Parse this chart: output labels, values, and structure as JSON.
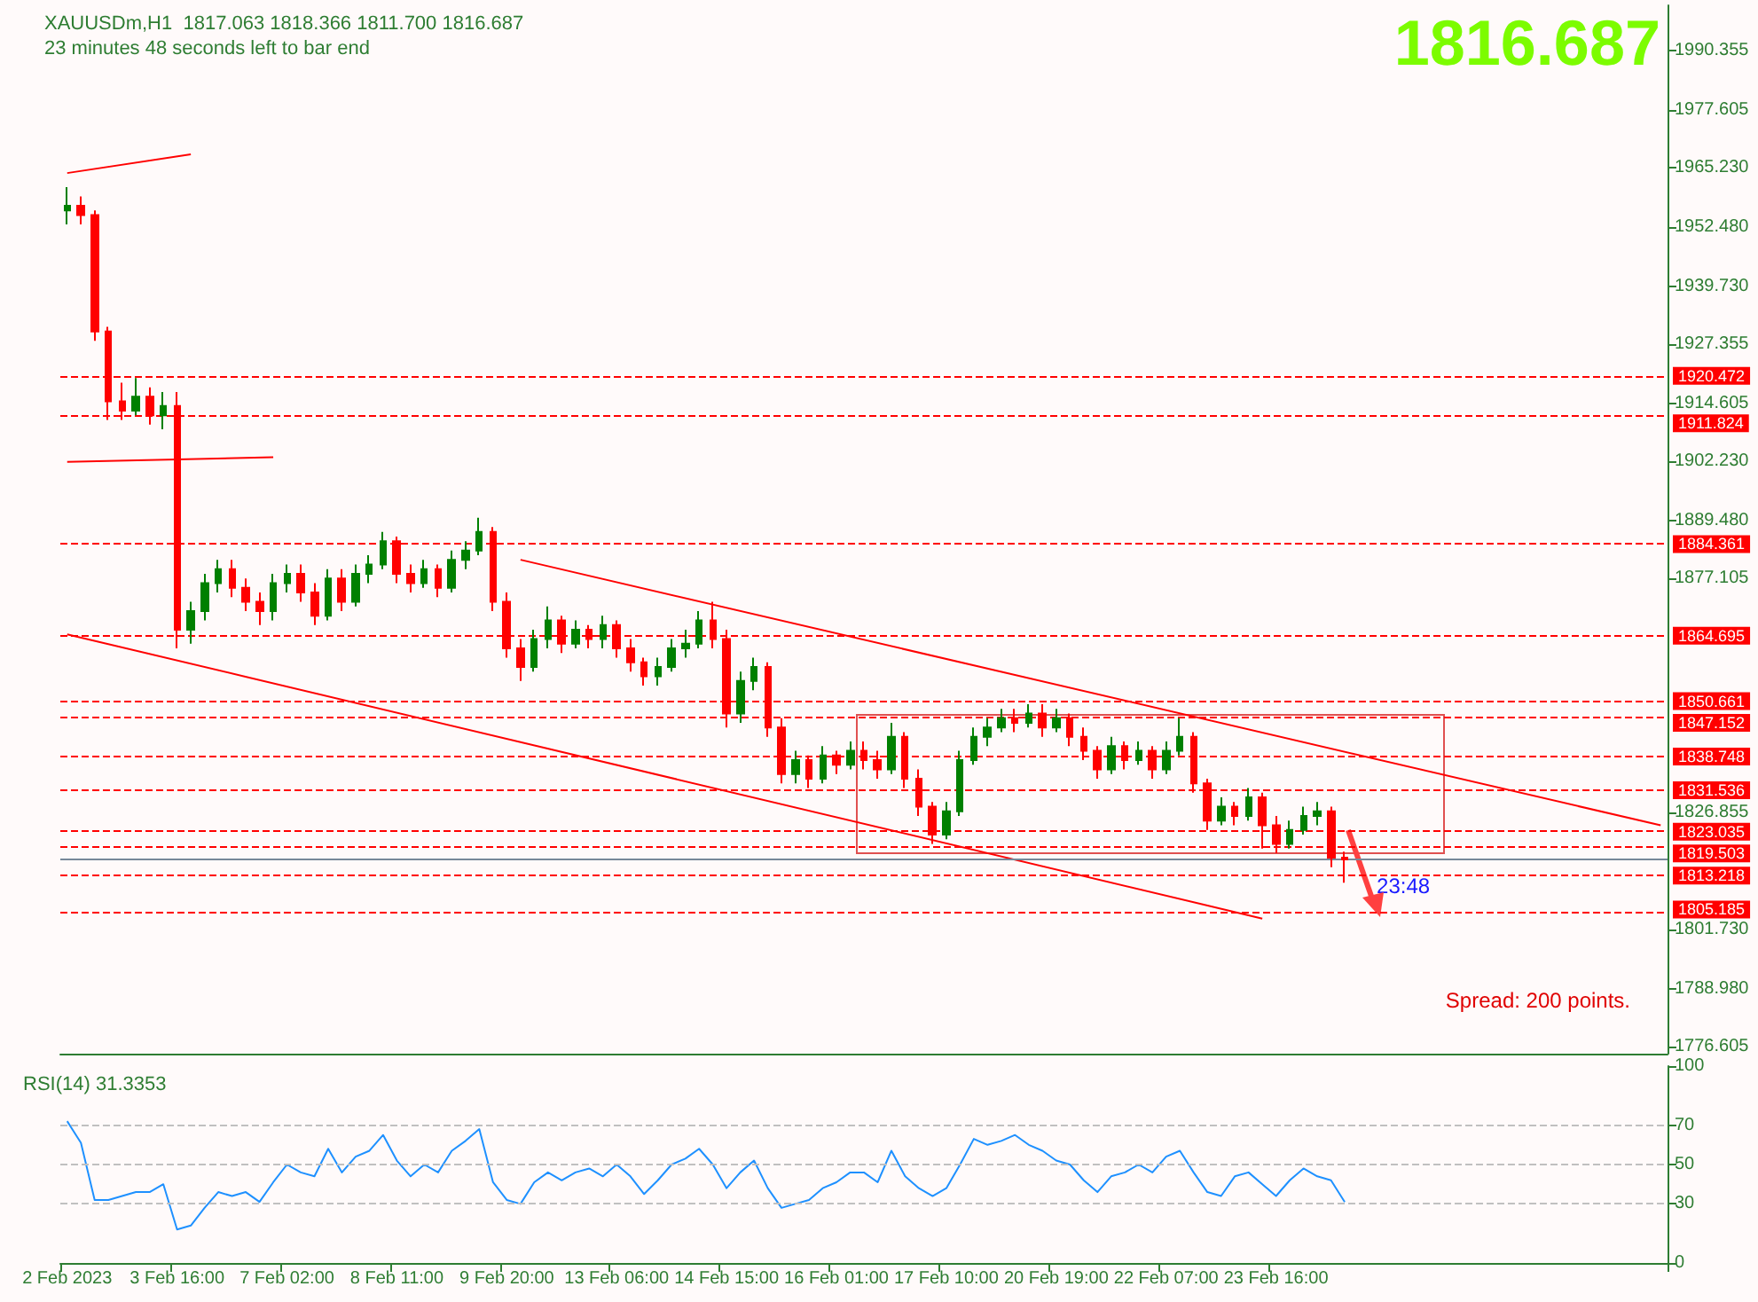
{
  "chart_data": [
    {
      "type": "candlestick",
      "title": "XAUUSDm,H1  1817.063 1818.366 1811.700 1816.687",
      "subtitle": "23 minutes 48 seconds left to bar end",
      "categories": [
        null,
        null,
        null,
        null,
        null,
        null,
        null,
        null,
        null,
        null,
        null,
        null,
        null,
        null,
        null,
        null,
        null,
        null,
        null,
        null,
        null,
        null,
        null,
        null,
        null,
        null,
        null,
        null,
        null,
        null,
        null,
        null,
        null,
        null,
        null,
        null,
        null,
        null,
        null,
        null,
        null,
        null,
        null,
        null,
        null,
        null,
        null,
        null,
        null,
        null,
        null,
        null,
        null,
        null,
        null,
        null,
        null,
        null,
        null,
        null,
        null,
        null,
        null,
        null,
        null,
        null,
        null,
        null,
        null,
        null,
        null,
        null,
        null,
        null,
        null,
        null,
        null,
        null,
        null,
        null,
        null,
        null,
        null,
        null,
        null,
        null,
        null,
        null,
        null,
        null,
        null,
        null,
        null,
        null,
        null,
        null,
        null,
        null,
        null,
        null,
        null,
        null,
        null,
        null,
        null,
        null,
        null,
        null,
        null,
        null,
        null,
        null,
        null,
        null,
        null,
        null,
        null
      ],
      "ohlc": [
        [
          1956,
          1961,
          1953,
          1957
        ],
        [
          1957,
          1959,
          1953,
          1955
        ],
        [
          1955,
          1956,
          1928,
          1930
        ],
        [
          1930,
          1931,
          1911,
          1915
        ],
        [
          1915,
          1919,
          1911,
          1913
        ],
        [
          1913,
          1920,
          1912,
          1916
        ],
        [
          1916,
          1918,
          1910,
          1912
        ],
        [
          1912,
          1917,
          1909,
          1914
        ],
        [
          1914,
          1917,
          1862,
          1866
        ],
        [
          1866,
          1872,
          1863,
          1870
        ],
        [
          1870,
          1878,
          1868,
          1876
        ],
        [
          1876,
          1881,
          1874,
          1879
        ],
        [
          1879,
          1881,
          1873,
          1875
        ],
        [
          1875,
          1877,
          1870,
          1872
        ],
        [
          1872,
          1874,
          1867,
          1870
        ],
        [
          1870,
          1878,
          1868,
          1876
        ],
        [
          1876,
          1880,
          1874,
          1878
        ],
        [
          1878,
          1880,
          1872,
          1874
        ],
        [
          1874,
          1876,
          1867,
          1869
        ],
        [
          1869,
          1879,
          1868,
          1877
        ],
        [
          1877,
          1879,
          1870,
          1872
        ],
        [
          1872,
          1880,
          1871,
          1878
        ],
        [
          1878,
          1882,
          1876,
          1880
        ],
        [
          1880,
          1887,
          1879,
          1885
        ],
        [
          1885,
          1886,
          1876,
          1878
        ],
        [
          1878,
          1880,
          1874,
          1876
        ],
        [
          1876,
          1881,
          1875,
          1879
        ],
        [
          1879,
          1880,
          1873,
          1875
        ],
        [
          1875,
          1883,
          1874,
          1881
        ],
        [
          1881,
          1885,
          1879,
          1883
        ],
        [
          1883,
          1890,
          1882,
          1887
        ],
        [
          1887,
          1888,
          1870,
          1872
        ],
        [
          1872,
          1874,
          1860,
          1862
        ],
        [
          1862,
          1864,
          1855,
          1858
        ],
        [
          1858,
          1866,
          1857,
          1864
        ],
        [
          1864,
          1871,
          1862,
          1868
        ],
        [
          1868,
          1869,
          1861,
          1863
        ],
        [
          1863,
          1868,
          1862,
          1866
        ],
        [
          1866,
          1867,
          1862,
          1864
        ],
        [
          1864,
          1869,
          1862,
          1867
        ],
        [
          1867,
          1868,
          1860,
          1862
        ],
        [
          1862,
          1864,
          1857,
          1859
        ],
        [
          1859,
          1860,
          1854,
          1856
        ],
        [
          1856,
          1860,
          1854,
          1858
        ],
        [
          1858,
          1864,
          1857,
          1862
        ],
        [
          1862,
          1866,
          1860,
          1863
        ],
        [
          1863,
          1870,
          1862,
          1868
        ],
        [
          1868,
          1872,
          1862,
          1864
        ],
        [
          1864,
          1866,
          1845,
          1848
        ],
        [
          1848,
          1857,
          1846,
          1855
        ],
        [
          1855,
          1860,
          1853,
          1858
        ],
        [
          1858,
          1859,
          1843,
          1845
        ],
        [
          1845,
          1847,
          1833,
          1835
        ],
        [
          1835,
          1840,
          1833,
          1838
        ],
        [
          1838,
          1839,
          1832,
          1834
        ],
        [
          1834,
          1841,
          1833,
          1839
        ],
        [
          1839,
          1840,
          1835,
          1837
        ],
        [
          1837,
          1842,
          1836,
          1840
        ],
        [
          1840,
          1842,
          1836,
          1838
        ],
        [
          1838,
          1840,
          1834,
          1836
        ],
        [
          1836,
          1846,
          1835,
          1843
        ],
        [
          1843,
          1844,
          1832,
          1834
        ],
        [
          1834,
          1836,
          1826,
          1828
        ],
        [
          1828,
          1829,
          1820,
          1822
        ],
        [
          1822,
          1829,
          1821,
          1827
        ],
        [
          1827,
          1840,
          1826,
          1838
        ],
        [
          1838,
          1845,
          1837,
          1843
        ],
        [
          1843,
          1847,
          1841,
          1845
        ],
        [
          1845,
          1849,
          1844,
          1847
        ],
        [
          1847,
          1849,
          1844,
          1846
        ],
        [
          1846,
          1850,
          1845,
          1848
        ],
        [
          1848,
          1850,
          1843,
          1845
        ],
        [
          1845,
          1849,
          1844,
          1847
        ],
        [
          1847,
          1848,
          1841,
          1843
        ],
        [
          1843,
          1845,
          1838,
          1840
        ],
        [
          1840,
          1841,
          1834,
          1836
        ],
        [
          1836,
          1843,
          1835,
          1841
        ],
        [
          1841,
          1842,
          1836,
          1838
        ],
        [
          1838,
          1842,
          1837,
          1840
        ],
        [
          1840,
          1841,
          1834,
          1836
        ],
        [
          1836,
          1842,
          1835,
          1840
        ],
        [
          1840,
          1847,
          1839,
          1843
        ],
        [
          1843,
          1844,
          1831,
          1833
        ],
        [
          1833,
          1834,
          1823,
          1825
        ],
        [
          1825,
          1830,
          1824,
          1828
        ],
        [
          1828,
          1829,
          1824,
          1826
        ],
        [
          1826,
          1832,
          1825,
          1830
        ],
        [
          1830,
          1831,
          1819,
          1824
        ],
        [
          1824,
          1826,
          1818,
          1820
        ],
        [
          1820,
          1825,
          1819,
          1823
        ],
        [
          1823,
          1828,
          1822,
          1826
        ],
        [
          1826,
          1829,
          1824,
          1827
        ],
        [
          1827,
          1828,
          1815,
          1817.063
        ],
        [
          1817.063,
          1818.366,
          1811.7,
          1816.687
        ],
        null,
        null,
        null,
        null,
        null,
        null,
        null,
        null,
        null,
        null,
        null,
        null,
        null,
        null,
        null,
        null,
        null,
        null,
        null,
        null,
        null,
        null,
        null
      ],
      "series": [
        {
          "type": "line",
          "color": "#ff0000",
          "values": [
            null,
            null,
            null,
            null,
            null,
            null,
            null,
            null,
            null,
            null,
            null,
            null,
            null,
            null,
            null,
            null,
            null,
            null,
            null,
            null,
            null,
            null,
            null,
            null,
            null,
            null,
            null,
            null,
            null,
            null,
            null,
            null,
            null,
            1881,
            null,
            null,
            null,
            null,
            null,
            null,
            null,
            null,
            null,
            null,
            null,
            null,
            null,
            null,
            null,
            null,
            null,
            null,
            null,
            null,
            null,
            null,
            null,
            null,
            null,
            null,
            null,
            null,
            null,
            null,
            null,
            null,
            null,
            null,
            null,
            null,
            null,
            null,
            null,
            null,
            null,
            null,
            null,
            null,
            null,
            null,
            null,
            null,
            null,
            null,
            null,
            null,
            null,
            null,
            null,
            null,
            null,
            null,
            null,
            null,
            null,
            null,
            null,
            null,
            null,
            null,
            null,
            null,
            null,
            null,
            null,
            null,
            null,
            null,
            null,
            null,
            null,
            null,
            null,
            null,
            null,
            null,
            1824
          ]
        },
        {
          "type": "line",
          "color": "#ff0000",
          "values": [
            1865,
            null,
            null,
            null,
            null,
            null,
            null,
            null,
            null,
            null,
            null,
            null,
            null,
            null,
            null,
            null,
            null,
            null,
            null,
            null,
            null,
            null,
            null,
            null,
            null,
            null,
            null,
            null,
            null,
            null,
            null,
            null,
            null,
            null,
            null,
            null,
            null,
            null,
            null,
            null,
            null,
            null,
            null,
            null,
            null,
            null,
            null,
            null,
            null,
            null,
            null,
            null,
            null,
            null,
            null,
            null,
            null,
            null,
            null,
            null,
            null,
            null,
            null,
            null,
            null,
            null,
            null,
            null,
            null,
            null,
            null,
            null,
            null,
            null,
            null,
            null,
            null,
            null,
            null,
            null,
            null,
            null,
            null,
            null,
            null,
            null,
            null,
            1804,
            null,
            null,
            null,
            null,
            null,
            null,
            null,
            null,
            null,
            null,
            null,
            null,
            null,
            null,
            null,
            null,
            null,
            null,
            null,
            null,
            null,
            null,
            null,
            null,
            null,
            null,
            null,
            null,
            null
          ]
        },
        {
          "type": "line",
          "color": "#ff0000",
          "values": [
            1964,
            null,
            null,
            null,
            null,
            null,
            null,
            null,
            null,
            1968,
            null,
            null,
            null,
            null,
            null,
            null,
            null,
            null,
            null,
            null,
            null,
            null,
            null,
            null,
            null,
            null,
            null,
            null,
            null,
            null,
            null,
            null,
            null,
            null,
            null,
            null,
            null,
            null,
            null,
            null,
            null,
            null,
            null,
            null,
            null,
            null,
            null,
            null,
            null,
            null,
            null,
            null,
            null,
            null,
            null,
            null,
            null,
            null,
            null,
            null,
            null,
            null,
            null,
            null,
            null,
            null,
            null,
            null,
            null,
            null,
            null,
            null,
            null,
            null,
            null,
            null,
            null,
            null,
            null,
            null,
            null,
            null,
            null,
            null,
            null,
            null,
            null,
            null,
            null,
            null,
            null,
            null,
            null,
            null,
            null,
            null,
            null,
            null,
            null,
            null,
            null,
            null,
            null,
            null,
            null,
            null,
            null,
            null,
            null,
            null,
            null,
            null,
            null,
            null,
            null,
            null,
            null
          ]
        },
        {
          "type": "line",
          "color": "#ff0000",
          "values": [
            1902,
            null,
            null,
            null,
            null,
            null,
            null,
            null,
            null,
            null,
            null,
            null,
            null,
            null,
            null,
            1903,
            null,
            null,
            null,
            null,
            null,
            null,
            null,
            null,
            null,
            null,
            null,
            null,
            null,
            null,
            null,
            null,
            null,
            null,
            null,
            null,
            null,
            null,
            null,
            null,
            null,
            null,
            null,
            null,
            null,
            null,
            null,
            null,
            null,
            null,
            null,
            null,
            null,
            null,
            null,
            null,
            null,
            null,
            null,
            null,
            null,
            null,
            null,
            null,
            null,
            null,
            null,
            null,
            null,
            null,
            null,
            null,
            null,
            null,
            null,
            null,
            null,
            null,
            null,
            null,
            null,
            null,
            null,
            null,
            null,
            null,
            null,
            null,
            null,
            null,
            null,
            null,
            null,
            null,
            null,
            null,
            null,
            null,
            null,
            null,
            null,
            null,
            null,
            null,
            null,
            null,
            null,
            null,
            null,
            null,
            null,
            null,
            null,
            null,
            null,
            null,
            null
          ]
        }
      ],
      "ylim": [
        1775,
        2000
      ],
      "yticks": [
        1990.355,
        1977.605,
        {
          "value": 1965.23,
          "label": "1965.230"
        },
        {
          "value": 1952.48,
          "label": "1952.480"
        },
        {
          "value": 1939.73,
          "label": "1939.730"
        },
        1927.355,
        1914.605,
        {
          "value": 1902.23,
          "label": "1902.230"
        },
        {
          "value": 1889.48,
          "label": "1889.480"
        },
        1877.105,
        1826.855,
        {
          "value": 1801.73,
          "label": "1801.730"
        },
        {
          "value": 1788.98,
          "label": "1788.980"
        },
        1776.605
      ],
      "tick_labels": "y",
      "ref_lines": [
        {
          "axis": "y",
          "value": 1920.472,
          "label": "1920.472",
          "color": "#ff0000",
          "line_style": "dashed"
        },
        {
          "axis": "y",
          "value": 1911.824,
          "label": "1911.824",
          "color": "#ff0000",
          "line_style": "dashed"
        },
        {
          "axis": "y",
          "value": 1884.361,
          "label": "1884.361",
          "color": "#ff0000",
          "line_style": "dashed"
        },
        {
          "axis": "y",
          "value": 1864.695,
          "label": "1864.695",
          "color": "#ff0000",
          "line_style": "dashed"
        },
        {
          "axis": "y",
          "value": 1850.661,
          "label": "1850.661",
          "color": "#ff0000",
          "line_style": "dashed"
        },
        {
          "axis": "y",
          "value": 1847.152,
          "label": "1847.152",
          "color": "#ff0000",
          "line_style": "dashed"
        },
        {
          "axis": "y",
          "value": 1838.748,
          "label": "1838.748",
          "color": "#ff0000",
          "line_style": "dashed"
        },
        {
          "axis": "y",
          "value": 1831.536,
          "label": "1831.536",
          "color": "#ff0000",
          "line_style": "dashed"
        },
        {
          "axis": "y",
          "value": 1823.035,
          "label": "1823.035",
          "color": "#ff0000",
          "line_style": "dashed"
        },
        {
          "axis": "y",
          "value": 1819.503,
          "label": "1819.503",
          "color": "#ff0000",
          "line_style": "dashed"
        },
        {
          "axis": "y",
          "value": 1816.687,
          "color": "#778899",
          "line_style": "solid"
        },
        {
          "axis": "y",
          "value": 1813.218,
          "label": "1813.218",
          "color": "#ff0000",
          "line_style": "dashed"
        },
        {
          "axis": "y",
          "value": 1805.185,
          "label": "1805.185",
          "color": "#ff0000",
          "line_style": "dashed"
        }
      ],
      "annotations": [
        "1816.687",
        "23:48",
        "Spread: 200 points."
      ]
    },
    {
      "type": "line",
      "title": "RSI(14) 31.3353",
      "categories": [
        "2 Feb 2023",
        null,
        null,
        null,
        null,
        null,
        null,
        null,
        "3 Feb 16:00",
        null,
        null,
        null,
        null,
        null,
        null,
        null,
        "7 Feb 02:00",
        null,
        null,
        null,
        null,
        null,
        null,
        null,
        "8 Feb 11:00",
        null,
        null,
        null,
        null,
        null,
        null,
        null,
        "9 Feb 20:00",
        null,
        null,
        null,
        null,
        null,
        null,
        null,
        "13 Feb 06:00",
        null,
        null,
        null,
        null,
        null,
        null,
        null,
        "14 Feb 15:00",
        null,
        null,
        null,
        null,
        null,
        null,
        null,
        "16 Feb 01:00",
        null,
        null,
        null,
        null,
        null,
        null,
        null,
        "17 Feb 10:00",
        null,
        null,
        null,
        null,
        null,
        null,
        null,
        "20 Feb 19:00",
        null,
        null,
        null,
        null,
        null,
        null,
        null,
        "22 Feb 07:00",
        null,
        null,
        null,
        null,
        null,
        null,
        null,
        "23 Feb 16:00",
        null,
        null,
        null,
        null,
        null,
        null,
        null,
        null,
        null,
        null,
        null,
        null,
        null,
        null,
        null,
        null,
        null,
        null,
        null,
        null,
        null,
        null,
        null,
        null,
        null,
        null,
        null,
        null
      ],
      "series": [
        {
          "color": "#1e90ff",
          "values": [
            72,
            61,
            32,
            32,
            34,
            36,
            36,
            40,
            17,
            19,
            28,
            36,
            34,
            36,
            31,
            41,
            50,
            46,
            44,
            58,
            46,
            54,
            57,
            65,
            52,
            44,
            50,
            46,
            57,
            62,
            68,
            41,
            32,
            30,
            41,
            46,
            42,
            46,
            48,
            44,
            50,
            44,
            35,
            42,
            50,
            53,
            58,
            50,
            38,
            46,
            52,
            38,
            28,
            30,
            32,
            38,
            41,
            46,
            46,
            41,
            57,
            44,
            38,
            34,
            38,
            50,
            63,
            60,
            62,
            65,
            60,
            57,
            52,
            50,
            42,
            36,
            44,
            46,
            50,
            46,
            54,
            57,
            46,
            36,
            34,
            44,
            46,
            40,
            34,
            42,
            48,
            44,
            42,
            31,
            null,
            null,
            null,
            null,
            null,
            null,
            null,
            null,
            null,
            null,
            null,
            null,
            null,
            null,
            null,
            null,
            null,
            null,
            null,
            null,
            null,
            null,
            null
          ]
        }
      ],
      "ylim": [
        0,
        100
      ],
      "yticks": [
        0,
        30,
        50,
        70,
        100
      ],
      "ref_lines": [
        {
          "axis": "y",
          "value": 70,
          "color": "#c0c0c0",
          "line_style": "dashed"
        },
        {
          "axis": "y",
          "value": 50,
          "color": "#c0c0c0",
          "line_style": "dashed"
        },
        {
          "axis": "y",
          "value": 30,
          "color": "#c0c0c0",
          "line_style": "dashed"
        }
      ]
    }
  ]
}
